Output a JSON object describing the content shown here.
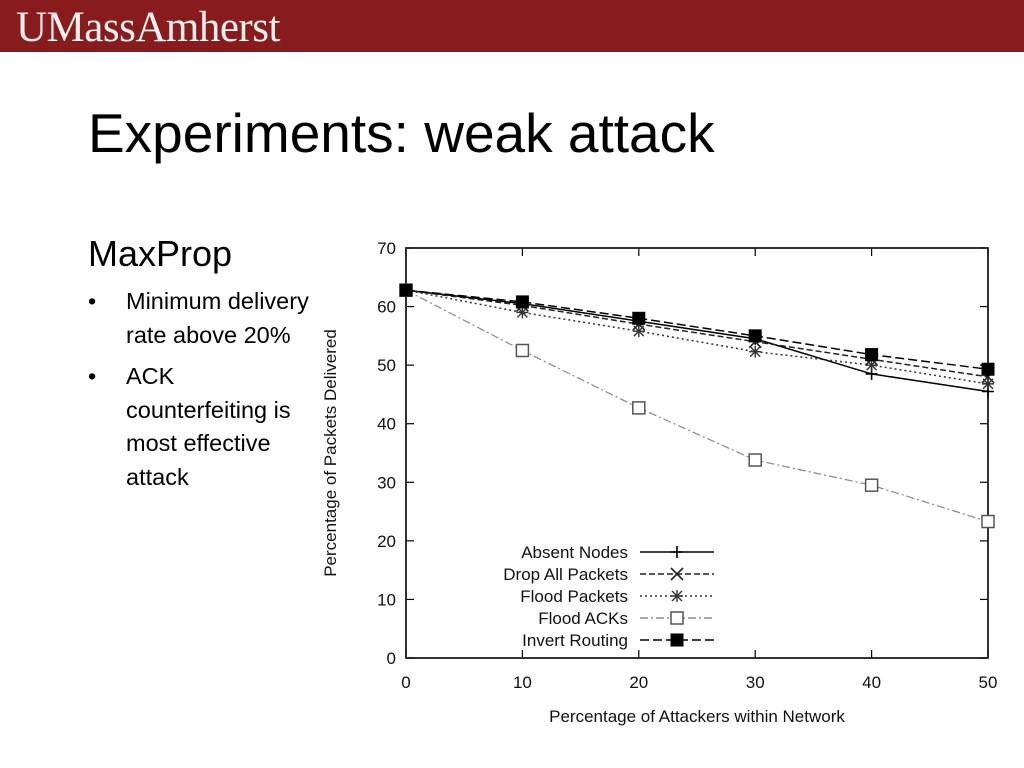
{
  "header": {
    "brand": "UMassAmherst",
    "brand_bg": "#881c1c"
  },
  "slide": {
    "title": "Experiments: weak attack",
    "subtitle": "MaxProp",
    "bullets": [
      "Minimum delivery rate above 20%",
      "ACK counterfeiting is most effective attack"
    ],
    "bullet_glyph": "•"
  },
  "chart_data": {
    "type": "line",
    "x": [
      0,
      10,
      20,
      30,
      40,
      50
    ],
    "xlabel": "Percentage of Attackers within Network",
    "ylabel": "Percentage of Packets Delivered",
    "xlim": [
      0,
      50
    ],
    "ylim": [
      0,
      70
    ],
    "xticks": [
      0,
      10,
      20,
      30,
      40,
      50
    ],
    "yticks": [
      0,
      10,
      20,
      30,
      40,
      50,
      60,
      70
    ],
    "grid": false,
    "legend_position": "bottom-center",
    "series": [
      {
        "name": "Absent Nodes",
        "values": [
          62.8,
          60.5,
          57.5,
          54.5,
          48.5,
          45.5
        ],
        "marker": "plus",
        "dash": "solid",
        "color": "#000000"
      },
      {
        "name": "Drop All Packets",
        "values": [
          62.8,
          60.2,
          57.0,
          54.0,
          51.0,
          48.0
        ],
        "marker": "x",
        "dash": "dashed",
        "color": "#222222"
      },
      {
        "name": "Flood Packets",
        "values": [
          62.8,
          59.0,
          55.8,
          52.3,
          50.0,
          46.8
        ],
        "marker": "star",
        "dash": "dotted",
        "color": "#333333"
      },
      {
        "name": "Flood ACKs",
        "values": [
          62.8,
          52.5,
          42.7,
          33.8,
          29.5,
          23.3
        ],
        "marker": "open-square",
        "dash": "dashdot-light",
        "color": "#888888"
      },
      {
        "name": "Invert Routing",
        "values": [
          62.8,
          60.8,
          58.0,
          55.0,
          51.8,
          49.3
        ],
        "marker": "filled-square",
        "dash": "longdash",
        "color": "#000000"
      }
    ]
  }
}
